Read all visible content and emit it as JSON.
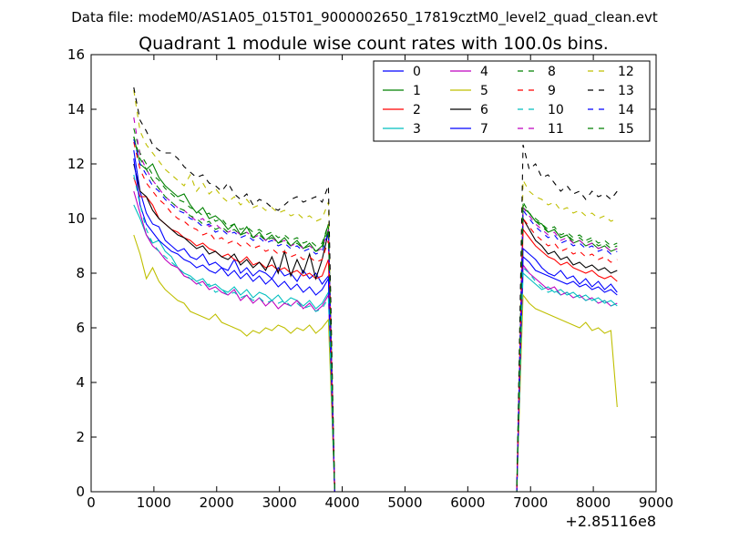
{
  "chart_data": {
    "type": "line",
    "suptitle": "Data file: modeM0/AS1A05_015T01_9000002650_17819cztM0_level2_quad_clean.evt",
    "title": "Quadrant 1 module wise count rates with 100.0s bins.",
    "xlabel": "",
    "ylabel": "",
    "x_offset_label": "+2.85116e8",
    "xlim": [
      0,
      9000
    ],
    "ylim": [
      0,
      16
    ],
    "xticks": [
      0,
      1000,
      2000,
      3000,
      4000,
      5000,
      6000,
      7000,
      8000,
      9000
    ],
    "yticks": [
      0,
      2,
      4,
      6,
      8,
      10,
      12,
      14,
      16
    ],
    "segments": [
      {
        "start": 680,
        "end": 3780,
        "step": 100,
        "drop_to": 3880
      },
      {
        "start": 6880,
        "end": 8450,
        "step": 100,
        "rise_from": 6780
      }
    ],
    "legend_position": "top-right",
    "series": [
      {
        "name": "0",
        "color": "#0000ff",
        "style": "solid",
        "seg1": [
          12.5,
          11.0,
          10.2,
          9.8,
          9.7,
          9.2,
          9.0,
          8.8,
          8.9,
          8.6,
          8.5,
          8.7,
          8.3,
          8.4,
          8.2,
          8.1,
          8.5,
          8.0,
          8.2,
          7.9,
          8.1,
          8.0,
          7.8,
          8.2,
          7.9,
          8.0,
          7.7,
          8.1,
          7.8,
          8.0,
          7.6,
          7.9
        ],
        "seg2": [
          8.9,
          8.7,
          8.5,
          8.2,
          8.0,
          7.9,
          8.1,
          7.8,
          7.9,
          7.6,
          7.8,
          7.5,
          7.7,
          7.4,
          7.6,
          7.3
        ]
      },
      {
        "name": "1",
        "color": "#008000",
        "style": "solid",
        "seg1": [
          13.0,
          12.0,
          11.8,
          12.0,
          11.5,
          11.2,
          11.0,
          10.8,
          10.9,
          10.5,
          10.2,
          10.4,
          10.0,
          10.1,
          9.9,
          9.6,
          9.8,
          9.4,
          9.7,
          9.3,
          9.5,
          9.2,
          9.4,
          9.1,
          9.3,
          9.0,
          9.2,
          8.9,
          9.1,
          8.8,
          9.0,
          9.8
        ],
        "seg2": [
          10.4,
          10.2,
          9.9,
          9.8,
          9.5,
          9.6,
          9.3,
          9.4,
          9.1,
          9.2,
          9.0,
          9.1,
          8.9,
          9.0,
          8.8,
          8.9
        ]
      },
      {
        "name": "2",
        "color": "#ff0000",
        "style": "solid",
        "seg1": [
          11.5,
          10.8,
          10.8,
          10.5,
          10.0,
          9.8,
          9.6,
          9.5,
          9.3,
          9.2,
          9.0,
          9.1,
          8.9,
          8.8,
          8.6,
          8.7,
          8.5,
          8.4,
          8.6,
          8.3,
          8.4,
          8.2,
          8.3,
          8.1,
          8.2,
          8.0,
          8.1,
          7.9,
          8.0,
          7.8,
          7.9,
          8.5
        ],
        "seg2": [
          9.6,
          9.3,
          9.0,
          8.8,
          8.6,
          8.5,
          8.3,
          8.4,
          8.2,
          8.1,
          8.0,
          8.1,
          7.9,
          7.8,
          7.9,
          7.7
        ]
      },
      {
        "name": "3",
        "color": "#00bfbf",
        "style": "solid",
        "seg1": [
          10.5,
          10.0,
          9.4,
          9.1,
          9.2,
          8.8,
          8.6,
          8.2,
          8.0,
          7.9,
          7.7,
          7.8,
          7.5,
          7.6,
          7.4,
          7.3,
          7.5,
          7.2,
          7.4,
          7.1,
          7.3,
          7.2,
          7.0,
          7.2,
          6.9,
          7.1,
          7.0,
          6.8,
          7.0,
          6.7,
          6.9,
          7.3
        ],
        "seg2": [
          8.0,
          7.8,
          7.6,
          7.4,
          7.5,
          7.3,
          7.4,
          7.2,
          7.3,
          7.1,
          7.2,
          7.0,
          7.1,
          6.9,
          7.0,
          6.8
        ]
      },
      {
        "name": "4",
        "color": "#bf00bf",
        "style": "solid",
        "seg1": [
          11.0,
          10.2,
          9.4,
          9.0,
          8.8,
          8.5,
          8.3,
          8.2,
          7.9,
          7.8,
          7.6,
          7.7,
          7.4,
          7.5,
          7.3,
          7.2,
          7.4,
          7.0,
          7.2,
          6.9,
          7.1,
          6.8,
          7.0,
          6.7,
          6.9,
          6.8,
          7.0,
          6.7,
          6.9,
          6.6,
          6.8,
          7.2
        ],
        "seg2": [
          8.3,
          8.0,
          7.8,
          7.6,
          7.4,
          7.5,
          7.2,
          7.3,
          7.1,
          7.2,
          7.0,
          7.1,
          6.9,
          7.0,
          6.8,
          6.9
        ]
      },
      {
        "name": "5",
        "color": "#bfbf00",
        "style": "solid",
        "seg1": [
          9.4,
          8.7,
          7.8,
          8.2,
          7.7,
          7.4,
          7.2,
          7.0,
          6.9,
          6.6,
          6.5,
          6.4,
          6.3,
          6.5,
          6.2,
          6.1,
          6.0,
          5.9,
          5.7,
          5.9,
          5.8,
          6.0,
          5.9,
          6.1,
          6.0,
          5.8,
          6.0,
          5.9,
          6.1,
          5.8,
          6.0,
          6.3
        ],
        "seg2": [
          7.2,
          6.9,
          6.7,
          6.6,
          6.5,
          6.4,
          6.3,
          6.2,
          6.1,
          6.0,
          6.2,
          5.9,
          6.0,
          5.8,
          5.9,
          3.1
        ]
      },
      {
        "name": "6",
        "color": "#000000",
        "style": "solid",
        "seg1": [
          12.0,
          11.0,
          10.8,
          10.3,
          10.0,
          9.8,
          9.6,
          9.4,
          9.3,
          9.1,
          8.9,
          9.0,
          8.7,
          8.8,
          8.6,
          8.5,
          8.7,
          8.3,
          8.5,
          8.2,
          8.4,
          8.1,
          8.6,
          8.0,
          8.8,
          7.9,
          8.5,
          8.0,
          8.7,
          7.8,
          8.5,
          9.5
        ],
        "seg2": [
          10.0,
          9.6,
          9.2,
          9.0,
          8.7,
          8.8,
          8.5,
          8.6,
          8.3,
          8.4,
          8.2,
          8.3,
          8.1,
          8.2,
          8.0,
          8.1
        ]
      },
      {
        "name": "7",
        "color": "#0000ff",
        "style": "solid",
        "seg1": [
          12.2,
          10.5,
          9.8,
          9.5,
          9.2,
          9.0,
          8.8,
          8.7,
          8.5,
          8.4,
          8.2,
          8.3,
          8.1,
          8.0,
          8.2,
          7.9,
          8.1,
          7.8,
          8.0,
          7.7,
          7.9,
          7.6,
          7.8,
          7.5,
          7.7,
          7.4,
          7.6,
          7.3,
          7.5,
          7.2,
          7.4,
          7.8
        ],
        "seg2": [
          8.6,
          8.4,
          8.1,
          8.0,
          7.9,
          7.8,
          7.7,
          7.6,
          7.7,
          7.5,
          7.6,
          7.4,
          7.5,
          7.3,
          7.4,
          7.2
        ]
      },
      {
        "name": "8",
        "color": "#008000",
        "style": "dashed",
        "seg1": [
          13.3,
          12.4,
          12.0,
          11.6,
          11.4,
          11.1,
          10.9,
          10.7,
          10.6,
          10.4,
          10.3,
          10.1,
          10.2,
          9.9,
          10.0,
          9.7,
          9.8,
          9.6,
          9.7,
          9.5,
          9.6,
          9.4,
          9.5,
          9.3,
          9.4,
          9.2,
          9.3,
          9.1,
          9.2,
          9.0,
          9.1,
          9.8
        ],
        "seg2": [
          10.5,
          10.2,
          10.0,
          9.8,
          9.6,
          9.7,
          9.4,
          9.5,
          9.3,
          9.4,
          9.2,
          9.3,
          9.1,
          9.2,
          9.0,
          9.1
        ]
      },
      {
        "name": "9",
        "color": "#ff0000",
        "style": "dashed",
        "seg1": [
          12.8,
          11.8,
          11.3,
          11.0,
          10.7,
          10.5,
          10.2,
          10.0,
          9.9,
          9.7,
          9.6,
          9.4,
          9.5,
          9.2,
          9.3,
          9.1,
          9.2,
          9.0,
          9.1,
          8.9,
          9.0,
          8.8,
          8.9,
          8.7,
          8.8,
          8.6,
          8.7,
          8.5,
          8.6,
          8.4,
          8.5,
          9.2
        ],
        "seg2": [
          10.0,
          9.7,
          9.4,
          9.2,
          9.0,
          9.1,
          8.8,
          8.9,
          8.7,
          8.8,
          8.6,
          8.7,
          8.5,
          8.6,
          8.4,
          8.5
        ]
      },
      {
        "name": "10",
        "color": "#00bfbf",
        "style": "dashed",
        "seg1": [
          11.6,
          10.5,
          9.6,
          9.1,
          8.8,
          8.6,
          8.4,
          8.2,
          8.0,
          7.8,
          7.7,
          7.5,
          7.6,
          7.3,
          7.4,
          7.2,
          7.3,
          7.1,
          7.2,
          7.0,
          7.1,
          6.9,
          7.0,
          6.9,
          7.0,
          6.8,
          6.9,
          6.7,
          6.8,
          6.6,
          6.7,
          7.1
        ],
        "seg2": [
          8.2,
          8.0,
          7.7,
          7.5,
          7.3,
          7.4,
          7.2,
          7.3,
          7.1,
          7.2,
          7.0,
          7.1,
          6.9,
          7.0,
          6.8,
          6.9
        ]
      },
      {
        "name": "11",
        "color": "#bf00bf",
        "style": "dashed",
        "seg1": [
          13.7,
          12.3,
          11.8,
          11.4,
          11.1,
          10.8,
          10.6,
          10.4,
          10.3,
          10.1,
          9.9,
          10.0,
          9.7,
          9.8,
          9.6,
          9.5,
          9.6,
          9.4,
          9.5,
          9.3,
          9.4,
          9.2,
          9.3,
          9.1,
          9.2,
          9.0,
          9.1,
          8.9,
          9.0,
          8.8,
          8.9,
          9.6
        ],
        "seg2": [
          10.4,
          10.1,
          9.8,
          9.6,
          9.4,
          9.5,
          9.2,
          9.3,
          9.1,
          9.2,
          9.0,
          9.1,
          8.9,
          9.0,
          8.8,
          8.9
        ]
      },
      {
        "name": "12",
        "color": "#bfbf00",
        "style": "dashed",
        "seg1": [
          14.7,
          13.2,
          12.7,
          12.4,
          12.1,
          11.8,
          11.6,
          11.4,
          11.2,
          11.6,
          11.0,
          11.3,
          10.9,
          11.1,
          10.8,
          10.6,
          10.8,
          10.5,
          10.7,
          10.4,
          10.5,
          10.3,
          10.4,
          10.2,
          10.3,
          10.1,
          10.2,
          10.0,
          10.1,
          9.9,
          10.0,
          10.6
        ],
        "seg2": [
          11.4,
          11.0,
          10.8,
          10.7,
          10.5,
          10.6,
          10.3,
          10.4,
          10.2,
          10.3,
          10.1,
          10.2,
          10.0,
          10.1,
          9.9,
          10.0
        ]
      },
      {
        "name": "13",
        "color": "#000000",
        "style": "dashed",
        "seg1": [
          14.8,
          13.6,
          13.2,
          12.7,
          12.5,
          12.4,
          12.4,
          12.2,
          11.9,
          11.7,
          11.5,
          11.6,
          11.3,
          11.2,
          11.0,
          11.3,
          10.9,
          10.7,
          10.9,
          10.5,
          10.7,
          10.6,
          10.4,
          10.3,
          10.5,
          10.7,
          10.8,
          10.6,
          10.7,
          10.8,
          10.6,
          11.2
        ],
        "seg2": [
          12.7,
          11.8,
          12.0,
          11.5,
          11.6,
          11.3,
          11.0,
          11.2,
          10.9,
          11.0,
          10.7,
          11.0,
          10.8,
          10.9,
          10.7,
          11.0
        ]
      },
      {
        "name": "14",
        "color": "#0000ff",
        "style": "dashed",
        "seg1": [
          12.9,
          12.0,
          11.6,
          11.2,
          11.0,
          10.7,
          10.5,
          10.3,
          10.2,
          10.0,
          9.9,
          9.7,
          9.8,
          9.5,
          9.6,
          9.4,
          9.5,
          9.3,
          9.4,
          9.2,
          9.3,
          9.1,
          9.2,
          9.0,
          9.1,
          8.9,
          9.0,
          8.8,
          8.9,
          8.7,
          8.8,
          9.5
        ],
        "seg2": [
          10.3,
          10.0,
          9.7,
          9.5,
          9.3,
          9.4,
          9.1,
          9.2,
          9.0,
          9.1,
          8.9,
          9.0,
          8.8,
          8.9,
          8.7,
          8.8
        ]
      },
      {
        "name": "15",
        "color": "#008000",
        "style": "dashed",
        "seg1": [
          13.0,
          12.2,
          11.8,
          11.4,
          11.1,
          10.8,
          10.6,
          10.4,
          10.3,
          10.1,
          10.0,
          9.8,
          9.9,
          9.6,
          9.7,
          9.5,
          9.6,
          9.4,
          9.5,
          9.3,
          9.4,
          9.2,
          9.3,
          9.1,
          9.2,
          9.0,
          9.1,
          8.9,
          9.0,
          8.8,
          8.9,
          9.6
        ],
        "seg2": [
          10.6,
          10.2,
          9.9,
          9.7,
          9.5,
          9.6,
          9.3,
          9.4,
          9.2,
          9.3,
          9.1,
          9.2,
          9.0,
          9.1,
          8.9,
          9.0
        ]
      }
    ]
  }
}
